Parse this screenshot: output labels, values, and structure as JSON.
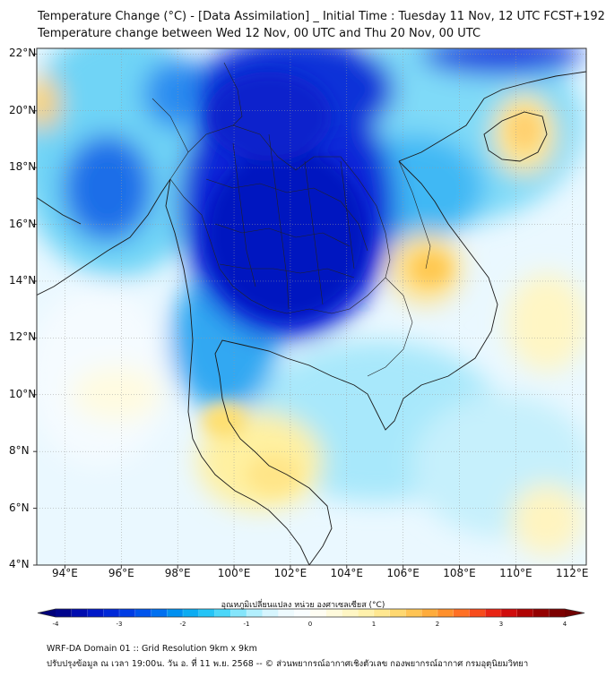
{
  "header": {
    "title_line1": "Temperature Change (°C) - [Data Assimilation] _ Initial Time : Tuesday 11 Nov, 12 UTC FCST+192",
    "title_line2": "Temperature change between Wed 12 Nov, 00 UTC and Thu 20 Nov, 00 UTC"
  },
  "map": {
    "lat_labels": [
      "22°N",
      "20°N",
      "18°N",
      "16°N",
      "14°N",
      "12°N",
      "10°N",
      "8°N",
      "6°N",
      "4°N"
    ],
    "lon_labels": [
      "94°E",
      "96°E",
      "98°E",
      "100°E",
      "102°E",
      "104°E",
      "106°E",
      "108°E",
      "110°E",
      "112°E"
    ],
    "extent": {
      "lon_min": 93,
      "lon_max": 112.5,
      "lat_min": 4,
      "lat_max": 22.2
    }
  },
  "colorbar": {
    "title": "อุณหภูมิเปลี่ยนแปลง หน่วย องศาเซลเซียส (°C)",
    "tick_labels": [
      "-4",
      "-3",
      "-2",
      "-1",
      "0",
      "1",
      "2",
      "3",
      "4"
    ],
    "range": [
      -4,
      4
    ],
    "colors": [
      "#00007a",
      "#0010c0",
      "#0030e0",
      "#0060f0",
      "#00a0f0",
      "#30d0f8",
      "#a0ecfc",
      "#e8f8fe",
      "#ffffff",
      "#fff8d0",
      "#ffeea0",
      "#ffd060",
      "#ffa030",
      "#ff6020",
      "#e01010",
      "#a00000",
      "#700000"
    ]
  },
  "footer": {
    "line1": "WRF-DA Domain 01 :: Grid Resolution 9km x 9km",
    "line2": "ปรับปรุงข้อมูล ณ เวลา 19:00น. วัน อ. ที่ 11 พ.ย. 2568 -- © ส่วนพยากรณ์อากาศเชิงตัวเลข กองพยากรณ์อากาศ กรมอุตุนิยมวิทยา"
  }
}
